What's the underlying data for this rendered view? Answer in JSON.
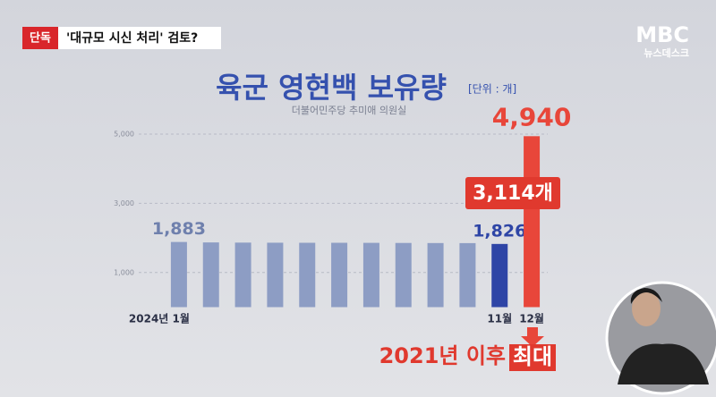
{
  "header": {
    "badge": "단독",
    "headline": "'대규모 시신 처리' 검토?"
  },
  "logo": {
    "brand": "MBC",
    "program": "뉴스데스크"
  },
  "chart_data": {
    "type": "bar",
    "title": "육군 영현백 보유량",
    "unit": "[단위 : 개]",
    "source": "더불어민주당 추미애 의원실",
    "categories": [
      "2024년 1월",
      null,
      null,
      null,
      null,
      null,
      null,
      null,
      null,
      null,
      "11월",
      "12월"
    ],
    "values": [
      1883,
      1870,
      1865,
      1862,
      1860,
      1860,
      1858,
      1855,
      1852,
      1850,
      1826,
      4940
    ],
    "value_labels": [
      "1,883",
      null,
      null,
      null,
      null,
      null,
      null,
      null,
      null,
      null,
      "1,826",
      "4,940"
    ],
    "colors": [
      "#8d9dc4",
      "#8d9dc4",
      "#8d9dc4",
      "#8d9dc4",
      "#8d9dc4",
      "#8d9dc4",
      "#8d9dc4",
      "#8d9dc4",
      "#8d9dc4",
      "#8d9dc4",
      "#2e45a6",
      "#e8463a"
    ],
    "ylim": [
      0,
      5000
    ],
    "yticks": [
      {
        "value": 1000,
        "label": "1,000"
      },
      {
        "value": 3000,
        "label": "3,000"
      },
      {
        "value": 5000,
        "label": "5,000"
      }
    ],
    "grid": true,
    "annotations": {
      "increase": "3,114개",
      "caption": "2021년 이후",
      "caption_highlight": "최대"
    }
  }
}
